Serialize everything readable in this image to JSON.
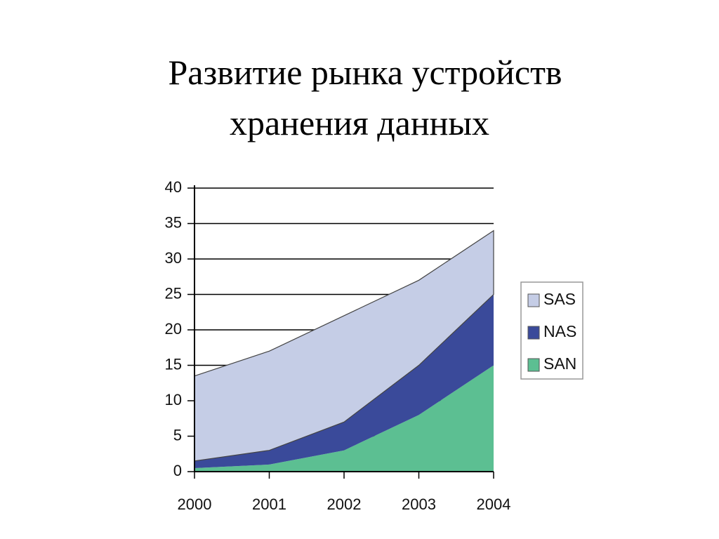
{
  "chart_data": {
    "type": "stacked_area",
    "title": [
      "Развитие рынка устройств",
      "хранения данных"
    ],
    "categories": [
      "2000",
      "2001",
      "2002",
      "2003",
      "2004"
    ],
    "series": [
      {
        "name": "SAS",
        "color": "#c5cde6",
        "values": [
          12,
          14,
          15,
          12,
          9
        ]
      },
      {
        "name": "NAS",
        "color": "#3a4a9a",
        "values": [
          1,
          2,
          4,
          7,
          10
        ]
      },
      {
        "name": "SAN",
        "color": "#5cbf92",
        "values": [
          0.5,
          1,
          3,
          8,
          15
        ]
      }
    ],
    "ylim": [
      0,
      40
    ],
    "yticks": [
      0,
      5,
      10,
      15,
      20,
      25,
      30,
      35,
      40
    ],
    "grid": true,
    "legend": "right"
  }
}
